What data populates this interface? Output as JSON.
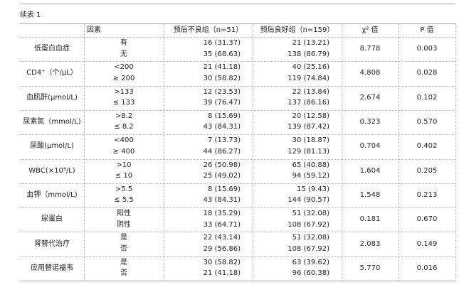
{
  "title": "续表 1",
  "header": [
    "因素",
    "预后不良组（n=51）",
    "预后良好组（n=159）",
    "χ² 值",
    "P 值"
  ],
  "rows": [
    {
      "factor": "低蛋白血症",
      "levels": [
        {
          "level": "有",
          "poor": "16 (31.37)",
          "good": "21 (13.21)"
        },
        {
          "level": "无",
          "poor": "35 (68.63)",
          "good": "138 (86.79)"
        }
      ],
      "chi2": "8.778",
      "p": "0.003"
    },
    {
      "factor": "CD4⁺（个/μL）",
      "levels": [
        {
          "level": "<200",
          "poor": "21 (41.18)",
          "good": "40 (25.16)"
        },
        {
          "level": "≥ 200",
          "poor": "30 (58.82)",
          "good": "119 (74.84)"
        }
      ],
      "chi2": "4.808",
      "p": "0.028"
    },
    {
      "factor": "血肌酐(μmol/L)",
      "levels": [
        {
          "level": ">133",
          "poor": "12 (23.53)",
          "good": "22 (13.84)"
        },
        {
          "level": "≤ 133",
          "poor": "39 (76.47)",
          "good": "137 (86.16)"
        }
      ],
      "chi2": "2.674",
      "p": "0.102"
    },
    {
      "factor": "尿素氮（mmol/L)",
      "levels": [
        {
          "level": ">8.2",
          "poor": "8 (15.69)",
          "good": "20 (12.58)"
        },
        {
          "level": "≤ 8.2",
          "poor": "43 (84.31)",
          "good": "139 (87.42)"
        }
      ],
      "chi2": "0.323",
      "p": "0.570"
    },
    {
      "factor": "尿酸(μmol/L)",
      "levels": [
        {
          "level": "<400",
          "poor": "7 (13.73)",
          "good": "30 (18.87)"
        },
        {
          "level": "≥ 400",
          "poor": "44 (86.27)",
          "good": "129 (81.13)"
        }
      ],
      "chi2": "0.704",
      "p": "0.402"
    },
    {
      "factor": "WBC(×10⁹/L)",
      "levels": [
        {
          "level": ">10",
          "poor": "26 (50.98)",
          "good": "65 (40.88)"
        },
        {
          "level": "≤ 10",
          "poor": "25 (49.02)",
          "good": "94 (59.12)"
        }
      ],
      "chi2": "1.604",
      "p": "0.205"
    },
    {
      "factor": "血钾（mmol/L)",
      "levels": [
        {
          "level": ">5.5",
          "poor": "8 (15.69)",
          "good": "15 (9.43)"
        },
        {
          "level": "≤ 5.5",
          "poor": "43 (84.31)",
          "good": "144 (90.57)"
        }
      ],
      "chi2": "1.548",
      "p": "0.213"
    },
    {
      "factor": "尿蛋白",
      "levels": [
        {
          "level": "阳性",
          "poor": "18 (35.29)",
          "good": "51 (32.08)"
        },
        {
          "level": "阴性",
          "poor": "33 (64.71)",
          "good": "108 (67.92)"
        }
      ],
      "chi2": "0.181",
      "p": "0.670"
    },
    {
      "factor": "肾替代治疗",
      "levels": [
        {
          "level": "是",
          "poor": "22 (43.14)",
          "good": "51 (32.08)"
        },
        {
          "level": "否",
          "poor": "29 (56.86)",
          "good": "108 (67.92)"
        }
      ],
      "chi2": "2.083",
      "p": "0.149"
    },
    {
      "factor": "应用替诺福韦",
      "levels": [
        {
          "level": "是",
          "poor": "30 (58.82)",
          "good": "63 (39.62)"
        },
        {
          "level": "否",
          "poor": "21 (41.18)",
          "good": "96 (60.38)"
        }
      ],
      "chi2": "5.770",
      "p": "0.016"
    }
  ]
}
